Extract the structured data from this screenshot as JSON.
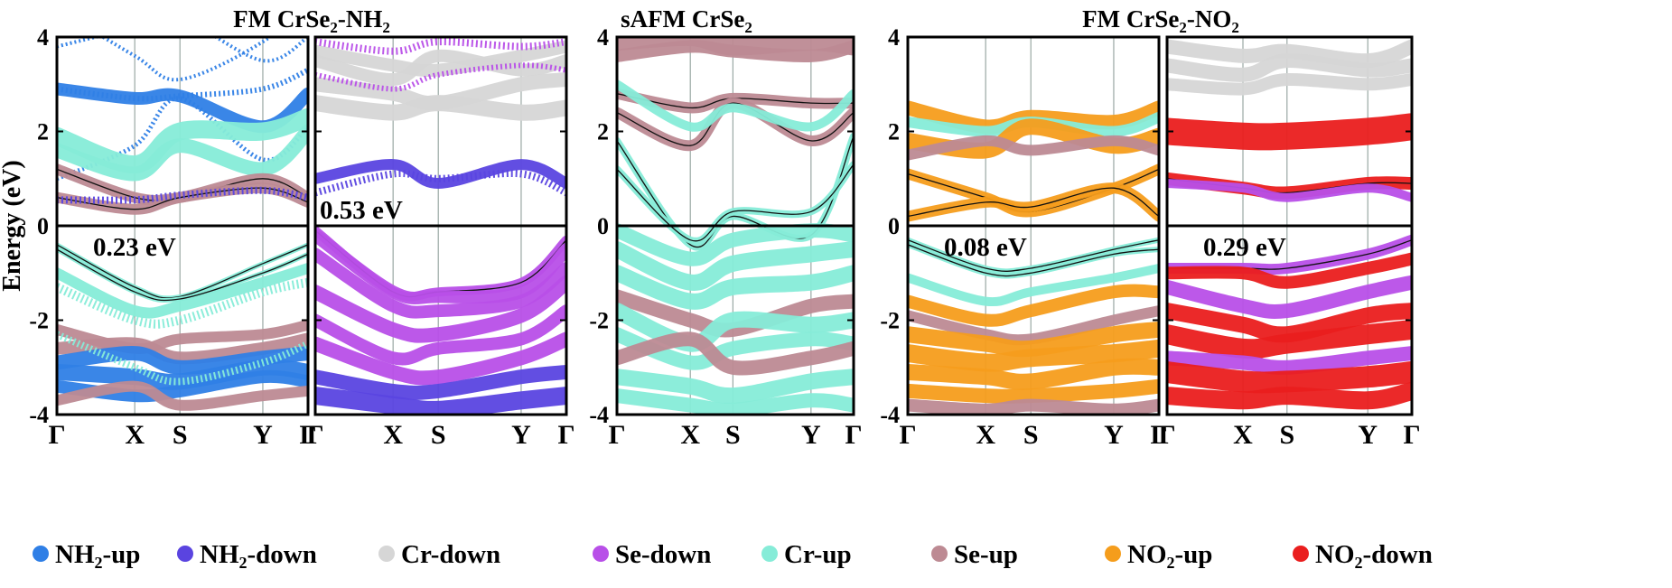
{
  "colors": {
    "NH2-up": "#2f7fe6",
    "NH2-down": "#5a44e0",
    "Cr-down": "#d6d6d6",
    "Se-down": "#b84fe8",
    "Cr-up": "#86ecd8",
    "Se-up": "#bd8a93",
    "NO2-up": "#f59d1c",
    "NO2-down": "#ea1e1e"
  },
  "figure": {
    "ylabel": "Energy (eV)",
    "group_titles": [
      {
        "pre": "FM  CrSe",
        "sub": "2",
        "mid": "-NH",
        "sub2": "2"
      },
      {
        "pre": "sAFM  CrSe",
        "sub": "2",
        "mid": "",
        "sub2": ""
      },
      {
        "pre": "FM  CrSe",
        "sub": "2",
        "mid": "-NO",
        "sub2": "2"
      }
    ],
    "legend": [
      {
        "key": "NH2-up",
        "pre": "NH",
        "sub": "2",
        "post": "-up"
      },
      {
        "key": "NH2-down",
        "pre": "NH",
        "sub": "2",
        "post": "-down"
      },
      {
        "key": "Cr-down",
        "pre": "Cr-down",
        "sub": "",
        "post": ""
      },
      {
        "key": "Se-down",
        "pre": "Se-down",
        "sub": "",
        "post": ""
      },
      {
        "key": "Cr-up",
        "pre": "Cr-up",
        "sub": "",
        "post": ""
      },
      {
        "key": "Se-up",
        "pre": "Se-up",
        "sub": "",
        "post": ""
      },
      {
        "key": "NO2-up",
        "pre": "NO",
        "sub": "2",
        "post": "-up"
      },
      {
        "key": "NO2-down",
        "pre": "NO",
        "sub": "2",
        "post": "-down"
      }
    ]
  },
  "chart_data": [
    {
      "type": "line",
      "panel": "NH2-up",
      "ylim": [
        -4,
        4
      ],
      "yticks": [
        "4",
        "2",
        "0",
        "-2",
        "-4"
      ],
      "xticks": [
        "Γ",
        "X",
        "S",
        "Y",
        "Γ"
      ],
      "kpos": [
        0,
        0.31,
        0.49,
        0.82,
        1
      ],
      "gap_label": "0.23 eV",
      "bands": [
        {
          "y": [
            4.6,
            3.6,
            3.1,
            3.9,
            4.8
          ],
          "w": 4,
          "c": "NH2-up",
          "dotted": true
        },
        {
          "y": [
            3.8,
            4.2,
            4.4,
            3.5,
            4.0
          ],
          "w": 4,
          "c": "NH2-up",
          "dotted": true
        },
        {
          "y": [
            2.9,
            2.7,
            2.75,
            2.1,
            2.8
          ],
          "w": 14,
          "c": "NH2-up"
        },
        {
          "y": [
            2.9,
            2.7,
            2.75,
            2.9,
            3.3
          ],
          "w": 6,
          "c": "NH2-up",
          "dotted": true
        },
        {
          "y": [
            1.0,
            1.7,
            2.7,
            1.4,
            2.1
          ],
          "w": 5,
          "c": "NH2-up",
          "dotted": true
        },
        {
          "y": [
            1.9,
            1.3,
            2.0,
            2.0,
            2.3
          ],
          "w": 20,
          "c": "Cr-up"
        },
        {
          "y": [
            1.6,
            1.1,
            1.7,
            1.2,
            2.0
          ],
          "w": 16,
          "c": "Cr-up"
        },
        {
          "y": [
            1.2,
            0.6,
            0.6,
            1.0,
            0.6
          ],
          "w": 12,
          "c": "Se-up",
          "black": true
        },
        {
          "y": [
            0.6,
            0.35,
            0.6,
            0.8,
            0.5
          ],
          "w": 12,
          "c": "Se-up",
          "black": true
        },
        {
          "y": [
            0.55,
            0.55,
            0.65,
            0.75,
            0.6
          ],
          "w": 8,
          "c": "NH2-down",
          "dotted": true
        },
        {
          "y": [
            -0.4,
            -1.3,
            -1.5,
            -0.8,
            -0.4
          ],
          "w": 5,
          "c": "Cr-up",
          "black": true
        },
        {
          "y": [
            -0.5,
            -1.4,
            -1.55,
            -1.0,
            -0.6
          ],
          "w": 5,
          "c": "Cr-up",
          "black": true
        },
        {
          "y": [
            -1.0,
            -1.8,
            -1.7,
            -1.2,
            -0.9
          ],
          "w": 12,
          "c": "Cr-up"
        },
        {
          "y": [
            -1.3,
            -2.0,
            -2.0,
            -1.4,
            -1.2
          ],
          "w": 10,
          "c": "Cr-up",
          "dotted": true
        },
        {
          "y": [
            -2.2,
            -2.6,
            -2.4,
            -2.3,
            -2.1
          ],
          "w": 12,
          "c": "Se-up"
        },
        {
          "y": [
            -2.6,
            -2.5,
            -2.8,
            -2.6,
            -2.4
          ],
          "w": 14,
          "c": "Se-up"
        },
        {
          "y": [
            -2.9,
            -2.7,
            -3.0,
            -2.8,
            -2.7
          ],
          "w": 16,
          "c": "NH2-up"
        },
        {
          "y": [
            -3.1,
            -3.2,
            -3.3,
            -3.0,
            -3.1
          ],
          "w": 18,
          "c": "NH2-up"
        },
        {
          "y": [
            -3.4,
            -3.6,
            -3.5,
            -3.2,
            -3.3
          ],
          "w": 14,
          "c": "NH2-up"
        },
        {
          "y": [
            -3.7,
            -3.4,
            -3.8,
            -3.6,
            -3.5
          ],
          "w": 12,
          "c": "Se-up"
        },
        {
          "y": [
            -2.3,
            -3.0,
            -3.3,
            -2.9,
            -2.5
          ],
          "w": 8,
          "c": "Cr-up",
          "dotted": true
        }
      ]
    },
    {
      "type": "line",
      "panel": "NH2-down",
      "ylim": [
        -4,
        4
      ],
      "yticks": [
        "4",
        "2",
        "0",
        "-2",
        "-4"
      ],
      "xticks": [
        "Γ",
        "X",
        "S",
        "Y",
        "Γ"
      ],
      "kpos": [
        0,
        0.31,
        0.49,
        0.82,
        1
      ],
      "gap_label": "0.53 eV",
      "bands": [
        {
          "y": [
            3.7,
            3.4,
            3.3,
            3.6,
            3.8
          ],
          "w": 14,
          "c": "Cr-down"
        },
        {
          "y": [
            3.5,
            3.1,
            3.6,
            3.3,
            3.5
          ],
          "w": 14,
          "c": "Cr-down"
        },
        {
          "y": [
            3.0,
            2.8,
            2.6,
            3.0,
            3.1
          ],
          "w": 16,
          "c": "Cr-down"
        },
        {
          "y": [
            2.6,
            2.4,
            2.6,
            2.4,
            2.5
          ],
          "w": 18,
          "c": "Cr-down"
        },
        {
          "y": [
            3.9,
            3.7,
            3.9,
            3.8,
            3.9
          ],
          "w": 8,
          "c": "Se-down",
          "dotted": true
        },
        {
          "y": [
            3.2,
            2.9,
            3.2,
            3.4,
            3.3
          ],
          "w": 6,
          "c": "Se-down",
          "dotted": true
        },
        {
          "y": [
            1.0,
            1.3,
            0.9,
            1.3,
            0.9
          ],
          "w": 12,
          "c": "NH2-down"
        },
        {
          "y": [
            0.7,
            1.1,
            1.0,
            1.1,
            0.7
          ],
          "w": 8,
          "c": "NH2-down",
          "dotted": true
        },
        {
          "y": [
            -0.1,
            -1.4,
            -1.4,
            -1.2,
            -0.3
          ],
          "w": 10,
          "c": "Se-down",
          "black": true
        },
        {
          "y": [
            -0.2,
            -1.4,
            -1.5,
            -1.4,
            -0.5
          ],
          "w": 14,
          "c": "Se-down"
        },
        {
          "y": [
            -0.6,
            -1.7,
            -1.8,
            -1.6,
            -0.9
          ],
          "w": 14,
          "c": "Se-down"
        },
        {
          "y": [
            -1.4,
            -2.2,
            -2.3,
            -1.9,
            -1.2
          ],
          "w": 16,
          "c": "Se-down"
        },
        {
          "y": [
            -2.0,
            -2.8,
            -2.6,
            -2.4,
            -1.8
          ],
          "w": 14,
          "c": "Se-down"
        },
        {
          "y": [
            -2.5,
            -3.1,
            -3.2,
            -2.8,
            -2.4
          ],
          "w": 16,
          "c": "Se-down"
        },
        {
          "y": [
            -3.2,
            -3.5,
            -3.5,
            -3.2,
            -3.1
          ],
          "w": 16,
          "c": "NH2-down"
        },
        {
          "y": [
            -3.6,
            -3.8,
            -3.9,
            -3.7,
            -3.6
          ],
          "w": 20,
          "c": "NH2-down"
        }
      ]
    },
    {
      "type": "line",
      "panel": "sAFM",
      "ylim": [
        -4,
        4
      ],
      "yticks": [
        "4",
        "2",
        "0",
        "-2",
        "-4"
      ],
      "xticks": [
        "Γ",
        "X",
        "S",
        "Y",
        "Γ"
      ],
      "kpos": [
        0,
        0.31,
        0.49,
        0.82,
        1
      ],
      "gap_label": "",
      "bands": [
        {
          "y": [
            3.9,
            4.0,
            3.8,
            3.9,
            3.8
          ],
          "w": 20,
          "c": "Se-up"
        },
        {
          "y": [
            3.6,
            3.8,
            3.7,
            3.6,
            3.8
          ],
          "w": 14,
          "c": "Se-up"
        },
        {
          "y": [
            2.8,
            2.5,
            2.7,
            2.6,
            2.6
          ],
          "w": 12,
          "c": "Se-up",
          "black": true
        },
        {
          "y": [
            2.4,
            1.7,
            2.6,
            1.8,
            2.4
          ],
          "w": 12,
          "c": "Se-up",
          "black": true
        },
        {
          "y": [
            3.0,
            2.1,
            2.5,
            2.1,
            2.8
          ],
          "w": 10,
          "c": "Cr-up"
        },
        {
          "y": [
            1.8,
            -0.4,
            0.2,
            -0.2,
            1.9
          ],
          "w": 8,
          "c": "Cr-up",
          "black": true
        },
        {
          "y": [
            1.2,
            -0.3,
            0.3,
            0.3,
            1.3
          ],
          "w": 8,
          "c": "Cr-up",
          "black": true
        },
        {
          "y": [
            -0.1,
            -0.7,
            -0.3,
            -0.1,
            -0.2
          ],
          "w": 16,
          "c": "Cr-up"
        },
        {
          "y": [
            -0.5,
            -1.2,
            -0.8,
            -0.6,
            -0.5
          ],
          "w": 18,
          "c": "Cr-up"
        },
        {
          "y": [
            -1.0,
            -1.6,
            -1.3,
            -1.2,
            -1.0
          ],
          "w": 18,
          "c": "Cr-up"
        },
        {
          "y": [
            -1.5,
            -2.0,
            -2.2,
            -1.7,
            -1.6
          ],
          "w": 16,
          "c": "Se-up"
        },
        {
          "y": [
            -1.8,
            -2.5,
            -2.0,
            -2.1,
            -2.0
          ],
          "w": 18,
          "c": "Cr-up"
        },
        {
          "y": [
            -2.3,
            -2.9,
            -2.6,
            -2.4,
            -2.5
          ],
          "w": 16,
          "c": "Cr-up"
        },
        {
          "y": [
            -2.8,
            -2.4,
            -3.0,
            -2.8,
            -2.6
          ],
          "w": 16,
          "c": "Se-up"
        },
        {
          "y": [
            -3.2,
            -3.4,
            -3.6,
            -3.3,
            -3.2
          ],
          "w": 18,
          "c": "Cr-up"
        },
        {
          "y": [
            -3.6,
            -3.8,
            -3.9,
            -3.7,
            -3.8
          ],
          "w": 16,
          "c": "Cr-up"
        }
      ]
    },
    {
      "type": "line",
      "panel": "NO2-up",
      "ylim": [
        -4,
        4
      ],
      "yticks": [
        "4",
        "2",
        "0",
        "-2",
        "-4"
      ],
      "xticks": [
        "Γ",
        "X",
        "S",
        "Y",
        "Γ"
      ],
      "kpos": [
        0,
        0.31,
        0.49,
        0.82,
        1
      ],
      "gap_label": "0.08 eV",
      "bands": [
        {
          "y": [
            2.5,
            2.1,
            2.3,
            2.2,
            2.5
          ],
          "w": 16,
          "c": "NO2-up"
        },
        {
          "y": [
            2.2,
            2.0,
            2.2,
            2.0,
            2.3
          ],
          "w": 12,
          "c": "Cr-up"
        },
        {
          "y": [
            1.8,
            1.6,
            2.1,
            1.7,
            1.9
          ],
          "w": 18,
          "c": "NO2-up"
        },
        {
          "y": [
            1.5,
            1.8,
            1.6,
            1.8,
            1.6
          ],
          "w": 12,
          "c": "Se-up"
        },
        {
          "y": [
            1.1,
            0.6,
            0.3,
            0.8,
            1.2
          ],
          "w": 12,
          "c": "NO2-up",
          "black": true
        },
        {
          "y": [
            0.2,
            0.5,
            0.4,
            0.8,
            0.2
          ],
          "w": 12,
          "c": "NO2-up",
          "black": true
        },
        {
          "y": [
            -0.4,
            -1.0,
            -1.0,
            -0.6,
            -0.5
          ],
          "w": 6,
          "c": "Cr-up",
          "black": true
        },
        {
          "y": [
            -0.3,
            -0.9,
            -0.9,
            -0.5,
            -0.3
          ],
          "w": 6,
          "c": "Cr-up",
          "black": true
        },
        {
          "y": [
            -1.1,
            -1.6,
            -1.4,
            -1.1,
            -0.9
          ],
          "w": 10,
          "c": "Cr-up"
        },
        {
          "y": [
            -1.6,
            -2.0,
            -1.8,
            -1.4,
            -1.4
          ],
          "w": 14,
          "c": "NO2-up"
        },
        {
          "y": [
            -1.9,
            -2.3,
            -2.4,
            -2.0,
            -1.8
          ],
          "w": 12,
          "c": "Se-up"
        },
        {
          "y": [
            -2.3,
            -2.5,
            -2.6,
            -2.3,
            -2.2
          ],
          "w": 18,
          "c": "NO2-up"
        },
        {
          "y": [
            -2.7,
            -2.9,
            -2.8,
            -2.7,
            -2.6
          ],
          "w": 20,
          "c": "NO2-up"
        },
        {
          "y": [
            -3.1,
            -3.2,
            -3.3,
            -3.0,
            -3.0
          ],
          "w": 18,
          "c": "NO2-up"
        },
        {
          "y": [
            -3.5,
            -3.6,
            -3.6,
            -3.5,
            -3.4
          ],
          "w": 16,
          "c": "NO2-up"
        },
        {
          "y": [
            -3.8,
            -3.9,
            -3.8,
            -3.9,
            -3.8
          ],
          "w": 14,
          "c": "Se-up"
        }
      ]
    },
    {
      "type": "line",
      "panel": "NO2-down",
      "ylim": [
        -4,
        4
      ],
      "yticks": [
        "4",
        "2",
        "0",
        "-2",
        "-4"
      ],
      "xticks": [
        "Γ",
        "X",
        "S",
        "Y",
        "Γ"
      ],
      "kpos": [
        0,
        0.31,
        0.49,
        0.82,
        1
      ],
      "gap_label": "0.29 eV",
      "bands": [
        {
          "y": [
            3.8,
            3.6,
            3.7,
            3.5,
            3.8
          ],
          "w": 16,
          "c": "Cr-down"
        },
        {
          "y": [
            3.4,
            3.2,
            3.5,
            3.3,
            3.4
          ],
          "w": 16,
          "c": "Cr-down"
        },
        {
          "y": [
            3.0,
            2.9,
            3.1,
            3.0,
            3.1
          ],
          "w": 14,
          "c": "Cr-down"
        },
        {
          "y": [
            2.0,
            1.9,
            1.9,
            2.0,
            2.1
          ],
          "w": 30,
          "c": "NO2-down"
        },
        {
          "y": [
            1.0,
            0.8,
            0.7,
            0.9,
            0.9
          ],
          "w": 14,
          "c": "NO2-down",
          "black": true
        },
        {
          "y": [
            0.9,
            0.8,
            0.6,
            0.8,
            0.6
          ],
          "w": 10,
          "c": "Se-down"
        },
        {
          "y": [
            -0.9,
            -0.9,
            -0.9,
            -0.6,
            -0.3
          ],
          "w": 12,
          "c": "Se-down",
          "black": true
        },
        {
          "y": [
            -1.0,
            -1.0,
            -1.2,
            -0.9,
            -0.7
          ],
          "w": 14,
          "c": "NO2-down"
        },
        {
          "y": [
            -1.3,
            -1.7,
            -1.8,
            -1.4,
            -1.2
          ],
          "w": 16,
          "c": "Se-down"
        },
        {
          "y": [
            -1.8,
            -2.1,
            -2.3,
            -1.9,
            -1.8
          ],
          "w": 18,
          "c": "NO2-down"
        },
        {
          "y": [
            -2.3,
            -2.6,
            -2.5,
            -2.3,
            -2.2
          ],
          "w": 22,
          "c": "NO2-down"
        },
        {
          "y": [
            -2.8,
            -2.9,
            -3.0,
            -2.8,
            -2.7
          ],
          "w": 16,
          "c": "Se-down"
        },
        {
          "y": [
            -3.1,
            -3.3,
            -3.3,
            -3.2,
            -3.1
          ],
          "w": 24,
          "c": "NO2-down"
        },
        {
          "y": [
            -3.6,
            -3.7,
            -3.6,
            -3.7,
            -3.5
          ],
          "w": 20,
          "c": "NO2-down"
        }
      ]
    }
  ]
}
